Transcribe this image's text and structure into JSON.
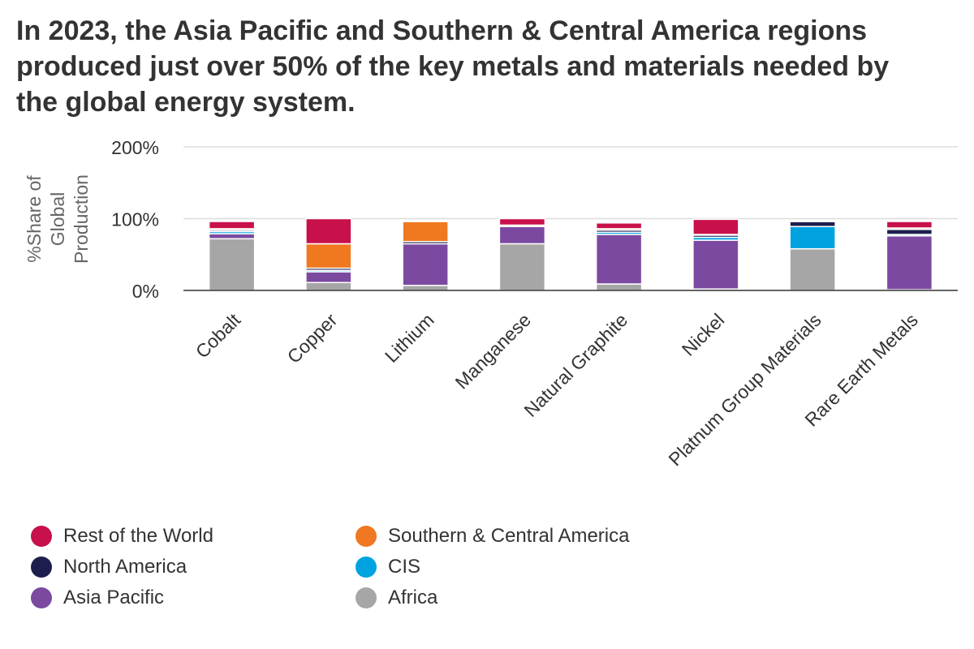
{
  "title": "In 2023, the Asia Pacific and Southern & Central America regions produced just over 50% of the key metals and materials needed by the global energy system.",
  "chart_data": {
    "type": "bar",
    "stacked": true,
    "title": "In 2023, the Asia Pacific and Southern & Central America regions produced just over 50% of the key metals and materials needed by the global energy system.",
    "ylabel": "%Share of Global Production",
    "xlabel": "",
    "ylim": [
      0,
      200
    ],
    "yticks": [
      "0%",
      "100%",
      "200%"
    ],
    "ytick_values": [
      0,
      100,
      200
    ],
    "grid": true,
    "legend_position": "bottom",
    "categories": [
      "Cobalt",
      "Copper",
      "Lithium",
      "Manganese",
      "Natural Graphite",
      "Nickel",
      "Platnum Group Materials",
      "Rare Earth Metals"
    ],
    "series": [
      {
        "name": "Africa",
        "color": "#a6a6a6",
        "values": [
          72,
          11,
          7,
          65,
          9,
          2,
          58,
          1
        ]
      },
      {
        "name": "Asia Pacific",
        "color": "#7b4aa0",
        "values": [
          7,
          15,
          58,
          24,
          69,
          68,
          0,
          75
        ]
      },
      {
        "name": "CIS",
        "color": "#00a3e0",
        "values": [
          3,
          2,
          0,
          0,
          3,
          4,
          31,
          2
        ]
      },
      {
        "name": "North America",
        "color": "#1e1e4e",
        "values": [
          2,
          3,
          3,
          0,
          3,
          3,
          7,
          7
        ]
      },
      {
        "name": "Southern & Central America",
        "color": "#f07820",
        "values": [
          2,
          34,
          28,
          2,
          2,
          1,
          1,
          2
        ]
      },
      {
        "name": "Rest of the World",
        "color": "#c8104a",
        "values": [
          10,
          35,
          1,
          9,
          8,
          21,
          0,
          9
        ]
      }
    ]
  },
  "legend": {
    "items": [
      {
        "label": "Rest of the World",
        "color": "#c8104a"
      },
      {
        "label": "Southern & Central America",
        "color": "#f07820"
      },
      {
        "label": "North America",
        "color": "#1e1e4e"
      },
      {
        "label": "CIS",
        "color": "#00a3e0"
      },
      {
        "label": "Asia Pacific",
        "color": "#7b4aa0"
      },
      {
        "label": "Africa",
        "color": "#a6a6a6"
      }
    ]
  }
}
